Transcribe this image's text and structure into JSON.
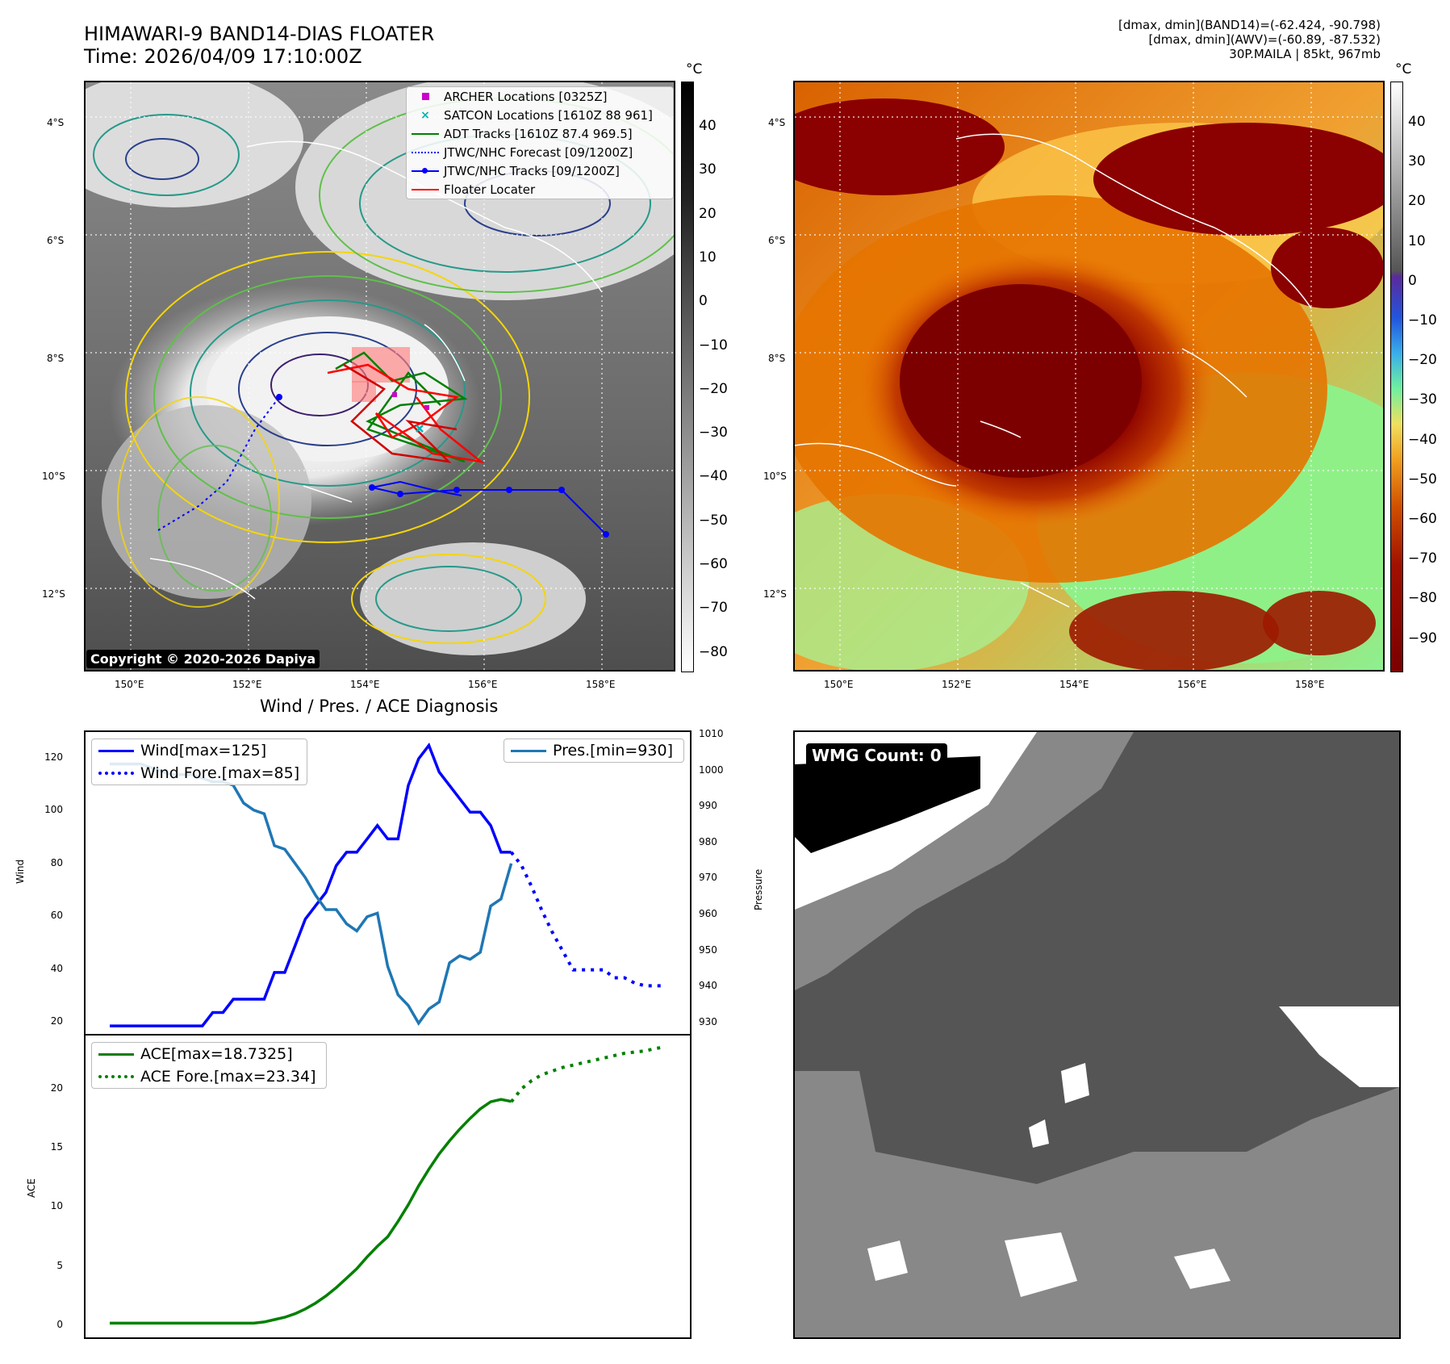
{
  "header": {
    "title_line1": "HIMAWARI-9 BAND14-DIAS FLOATER",
    "title_line2": "Time: 2026/04/09 17:10:00Z",
    "info_line1": "[dmax, dmin](BAND14)=(-62.424, -90.798)",
    "info_line2": "[dmax, dmin](AWV)=(-60.89, -87.532)",
    "info_line3": "30P.MAILA | 85kt, 967mb"
  },
  "map": {
    "lat_labels": [
      "4°S",
      "6°S",
      "8°S",
      "10°S",
      "12°S"
    ],
    "lon_labels": [
      "150°E",
      "152°E",
      "154°E",
      "156°E",
      "158°E"
    ],
    "copyright": "Copyright © 2020-2026 Dapiya"
  },
  "colorbar_left": {
    "unit": "°C",
    "ticks": [
      "40",
      "30",
      "20",
      "10",
      "0",
      "−10",
      "−20",
      "−30",
      "−40",
      "−50",
      "−60",
      "−70",
      "−80"
    ]
  },
  "colorbar_right": {
    "unit": "°C",
    "ticks": [
      "40",
      "30",
      "20",
      "10",
      "0",
      "−10",
      "−20",
      "−30",
      "−40",
      "−50",
      "−60",
      "−70",
      "−80",
      "−90"
    ]
  },
  "legend_map": {
    "archer": "ARCHER Locations [0325Z]",
    "satcon": "SATCON Locations [1610Z 88 961]",
    "adt": "ADT Tracks [1610Z 87.4 969.5]",
    "forecast": "JTWC/NHC Forecast [09/1200Z]",
    "tracks": "JTWC/NHC Tracks [09/1200Z]",
    "floater": "Floater Locater"
  },
  "diag": {
    "title": "Wind / Pres. / ACE Diagnosis",
    "wind_axis_label": "Wind",
    "pres_axis_label": "Pressure",
    "ace_axis_label": "ACE",
    "wind_ticks": [
      "120",
      "100",
      "80",
      "60",
      "40",
      "20"
    ],
    "pres_ticks": [
      "1010",
      "1000",
      "990",
      "980",
      "970",
      "960",
      "950",
      "940",
      "930"
    ],
    "ace_ticks": [
      "20",
      "15",
      "10",
      "5",
      "0"
    ],
    "legend_wind": "Wind[max=125]",
    "legend_wind_fore": "Wind Fore.[max=85]",
    "legend_pres": "Pres.[min=930]",
    "legend_ace": "ACE[max=18.7325]",
    "legend_ace_fore": "ACE Fore.[max=23.34]"
  },
  "wmg": {
    "label": "WMG Count: 0"
  },
  "colors": {
    "wind": "#0000ff",
    "pres": "#1f77b4",
    "ace": "#008000",
    "forecast_track": "#0000ff",
    "adt": "#008000",
    "floater": "#ff0000",
    "archer": "#cc00cc",
    "satcon": "#00b3b3"
  },
  "chart_data": [
    {
      "type": "line",
      "title": "Wind / Pres. / ACE Diagnosis",
      "ylabel": "Wind",
      "ylim": [
        17,
        130
      ],
      "series": [
        {
          "name": "Wind[max=125]",
          "x": [
            0,
            1,
            2,
            3,
            4,
            5,
            6,
            7,
            8,
            9,
            10,
            11,
            12,
            13,
            14,
            15,
            16,
            17,
            18,
            19,
            20,
            21,
            22,
            23,
            24,
            25,
            26,
            27,
            28,
            29,
            30,
            31,
            32,
            33,
            34,
            35,
            36,
            37,
            38,
            39
          ],
          "values": [
            20,
            20,
            20,
            20,
            20,
            20,
            20,
            20,
            20,
            20,
            25,
            25,
            30,
            30,
            30,
            30,
            40,
            40,
            50,
            60,
            65,
            70,
            80,
            85,
            85,
            90,
            95,
            90,
            90,
            110,
            120,
            125,
            115,
            110,
            105,
            100,
            100,
            95,
            85,
            85
          ]
        },
        {
          "name": "Wind Fore.[max=85]",
          "x": [
            39,
            40,
            41,
            42,
            43,
            44,
            45,
            46,
            47,
            48,
            49,
            50,
            51,
            52,
            53,
            54
          ],
          "values": [
            85,
            80,
            72,
            63,
            55,
            48,
            41,
            41,
            41,
            41,
            38,
            38,
            36,
            35,
            35,
            35
          ]
        }
      ]
    },
    {
      "type": "line",
      "ylabel": "Pressure",
      "ylim": [
        927,
        1012
      ],
      "series": [
        {
          "name": "Pres.[min=930]",
          "x": [
            0,
            1,
            2,
            3,
            4,
            5,
            6,
            7,
            8,
            9,
            10,
            11,
            12,
            13,
            14,
            15,
            16,
            17,
            18,
            19,
            20,
            21,
            22,
            23,
            24,
            25,
            26,
            27,
            28,
            29,
            30,
            31,
            32,
            33,
            34,
            35,
            36,
            37,
            38,
            39
          ],
          "values": [
            1003,
            1003,
            1003,
            1003,
            1002,
            1001,
            1000,
            1000,
            1000,
            999,
            998,
            998,
            997,
            992,
            990,
            989,
            980,
            979,
            975,
            971,
            966,
            962,
            962,
            958,
            956,
            960,
            961,
            946,
            938,
            935,
            930,
            934,
            936,
            947,
            949,
            948,
            950,
            963,
            965,
            975
          ]
        }
      ]
    },
    {
      "type": "line",
      "ylabel": "ACE",
      "ylim": [
        -1.2,
        24.3
      ],
      "series": [
        {
          "name": "ACE[max=18.7325]",
          "x": [
            0,
            2,
            4,
            6,
            8,
            10,
            12,
            14,
            15,
            16,
            17,
            18,
            19,
            20,
            21,
            22,
            23,
            24,
            25,
            26,
            27,
            28,
            29,
            30,
            31,
            32,
            33,
            34,
            35,
            36,
            37,
            38,
            39
          ],
          "values": [
            0,
            0,
            0,
            0,
            0,
            0,
            0,
            0,
            0.1,
            0.3,
            0.5,
            0.8,
            1.2,
            1.7,
            2.3,
            3.0,
            3.8,
            4.6,
            5.6,
            6.5,
            7.3,
            8.6,
            10.0,
            11.6,
            13.0,
            14.3,
            15.4,
            16.4,
            17.3,
            18.1,
            18.7,
            18.9,
            18.7325
          ]
        },
        {
          "name": "ACE Fore.[max=23.34]",
          "x": [
            39,
            40,
            41,
            42,
            43,
            44,
            45,
            46,
            47,
            48,
            49,
            50,
            51,
            52,
            53,
            54
          ],
          "values": [
            18.7,
            19.8,
            20.5,
            21.0,
            21.3,
            21.6,
            21.8,
            22.0,
            22.2,
            22.4,
            22.6,
            22.8,
            22.9,
            23.0,
            23.2,
            23.34
          ]
        }
      ]
    }
  ]
}
